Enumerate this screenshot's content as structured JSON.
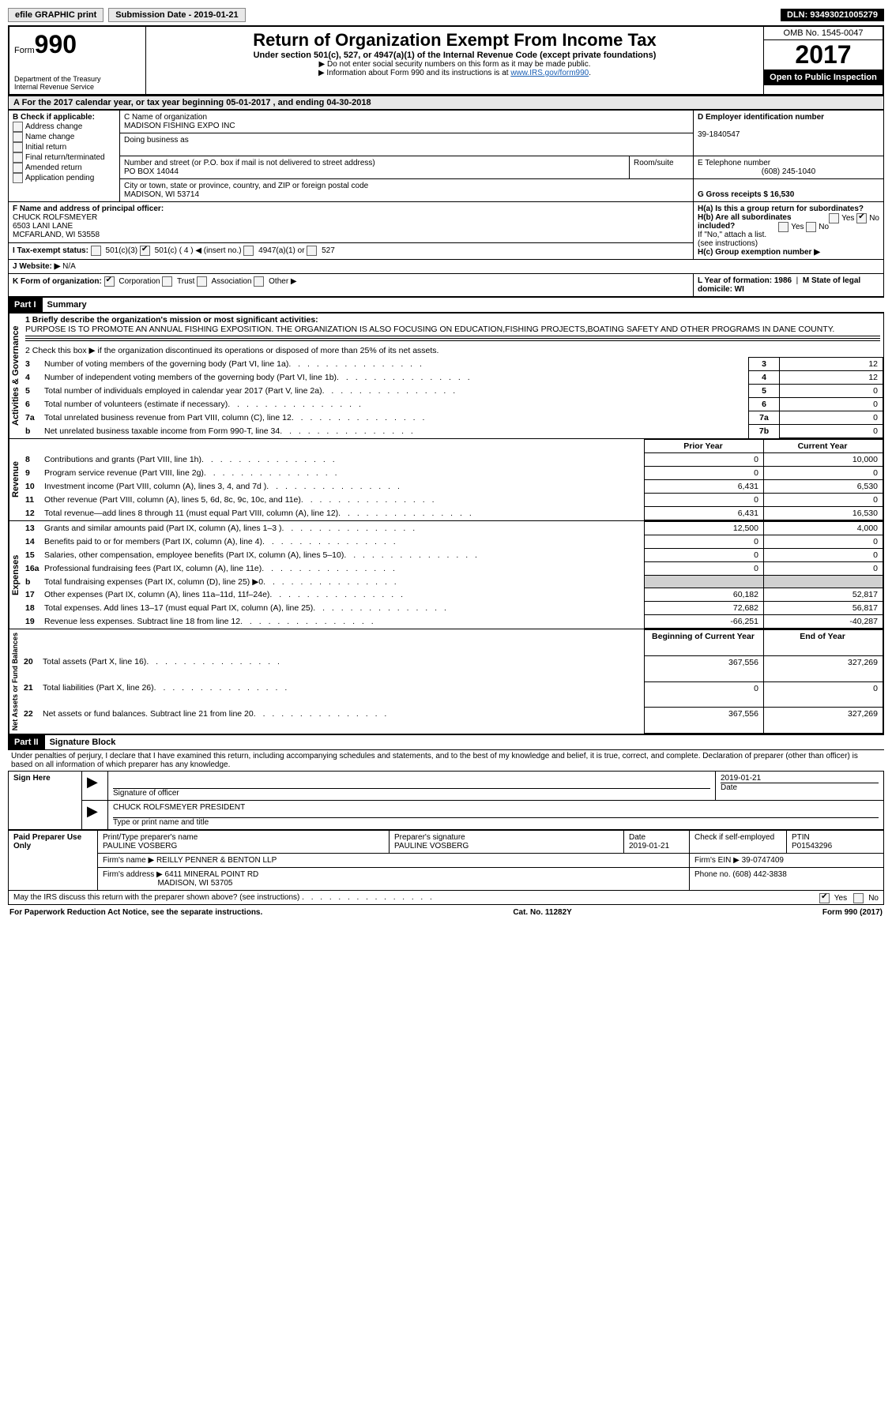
{
  "topbar": {
    "efile_label": "efile GRAPHIC print",
    "submission_label": "Submission Date - 2019-01-21",
    "dln_label": "DLN: 93493021005279"
  },
  "header": {
    "form_prefix": "Form",
    "form_number": "990",
    "dept": "Department of the Treasury",
    "irs": "Internal Revenue Service",
    "title": "Return of Organization Exempt From Income Tax",
    "subtitle": "Under section 501(c), 527, or 4947(a)(1) of the Internal Revenue Code (except private foundations)",
    "note1": "▶ Do not enter social security numbers on this form as it may be made public.",
    "note2_prefix": "▶ Information about Form 990 and its instructions is at ",
    "note2_link": "www.IRS.gov/form990",
    "omb": "OMB No. 1545-0047",
    "year": "2017",
    "open_public": "Open to Public Inspection"
  },
  "section_a": "A  For the 2017 calendar year, or tax year beginning 05-01-2017   , and ending 04-30-2018",
  "block_b": {
    "title": "B Check if applicable:",
    "items": [
      "Address change",
      "Name change",
      "Initial return",
      "Final return/terminated",
      "Amended return",
      "Application pending"
    ]
  },
  "block_c": {
    "name_label": "C Name of organization",
    "name": "MADISON FISHING EXPO INC",
    "dba_label": "Doing business as",
    "street_label": "Number and street (or P.O. box if mail is not delivered to street address)",
    "street": "PO BOX 14044",
    "room_label": "Room/suite",
    "city_label": "City or town, state or province, country, and ZIP or foreign postal code",
    "city": "MADISON, WI  53714"
  },
  "block_d": {
    "ein_label": "D Employer identification number",
    "ein": "39-1840547",
    "phone_label": "E Telephone number",
    "phone": "(608) 245-1040",
    "gross_label": "G Gross receipts $ 16,530"
  },
  "block_f": {
    "label": "F Name and address of principal officer:",
    "name": "CHUCK ROLFSMEYER",
    "addr1": "6503 LANI LANE",
    "addr2": "MCFARLAND, WI  53558"
  },
  "block_h": {
    "a_label": "H(a)  Is this a group return for subordinates?",
    "b_label": "H(b)  Are all subordinates included?",
    "note": "If \"No,\" attach a list. (see instructions)",
    "c_label": "H(c)  Group exemption number ▶",
    "yes": "Yes",
    "no": "No"
  },
  "block_i": {
    "label": "I  Tax-exempt status:",
    "opts": [
      "501(c)(3)",
      "501(c) ( 4 ) ◀ (insert no.)",
      "4947(a)(1) or",
      "527"
    ]
  },
  "block_j": {
    "label": "J  Website: ▶",
    "value": "N/A"
  },
  "block_k": {
    "label": "K Form of organization:",
    "opts": [
      "Corporation",
      "Trust",
      "Association",
      "Other ▶"
    ],
    "year_label": "L Year of formation: 1986",
    "state_label": "M State of legal domicile: WI"
  },
  "part1": {
    "header": "Part I",
    "title": "Summary",
    "vlabel_gov": "Activities & Governance",
    "vlabel_rev": "Revenue",
    "vlabel_exp": "Expenses",
    "vlabel_net": "Net Assets or Fund Balances",
    "line1_label": "1  Briefly describe the organization's mission or most significant activities:",
    "line1_text": "PURPOSE IS TO PROMOTE AN ANNUAL FISHING EXPOSITION. THE ORGANIZATION IS ALSO FOCUSING ON EDUCATION,FISHING PROJECTS,BOATING SAFETY AND OTHER PROGRAMS IN DANE COUNTY.",
    "line2": "2   Check this box ▶        if the organization discontinued its operations or disposed of more than 25% of its net assets.",
    "rows_single": [
      {
        "n": "3",
        "label": "Number of voting members of the governing body (Part VI, line 1a)",
        "box": "3",
        "val": "12"
      },
      {
        "n": "4",
        "label": "Number of independent voting members of the governing body (Part VI, line 1b)",
        "box": "4",
        "val": "12"
      },
      {
        "n": "5",
        "label": "Total number of individuals employed in calendar year 2017 (Part V, line 2a)",
        "box": "5",
        "val": "0"
      },
      {
        "n": "6",
        "label": "Total number of volunteers (estimate if necessary)",
        "box": "6",
        "val": "0"
      },
      {
        "n": "7a",
        "label": "Total unrelated business revenue from Part VIII, column (C), line 12",
        "box": "7a",
        "val": "0"
      },
      {
        "n": "b",
        "label": "Net unrelated business taxable income from Form 990-T, line 34",
        "box": "7b",
        "val": "0"
      }
    ],
    "col_headers": {
      "prior": "Prior Year",
      "current": "Current Year"
    },
    "rows_rev": [
      {
        "n": "8",
        "label": "Contributions and grants (Part VIII, line 1h)",
        "prior": "0",
        "cur": "10,000"
      },
      {
        "n": "9",
        "label": "Program service revenue (Part VIII, line 2g)",
        "prior": "0",
        "cur": "0"
      },
      {
        "n": "10",
        "label": "Investment income (Part VIII, column (A), lines 3, 4, and 7d )",
        "prior": "6,431",
        "cur": "6,530"
      },
      {
        "n": "11",
        "label": "Other revenue (Part VIII, column (A), lines 5, 6d, 8c, 9c, 10c, and 11e)",
        "prior": "0",
        "cur": "0"
      },
      {
        "n": "12",
        "label": "Total revenue—add lines 8 through 11 (must equal Part VIII, column (A), line 12)",
        "prior": "6,431",
        "cur": "16,530"
      }
    ],
    "rows_exp": [
      {
        "n": "13",
        "label": "Grants and similar amounts paid (Part IX, column (A), lines 1–3 )",
        "prior": "12,500",
        "cur": "4,000"
      },
      {
        "n": "14",
        "label": "Benefits paid to or for members (Part IX, column (A), line 4)",
        "prior": "0",
        "cur": "0"
      },
      {
        "n": "15",
        "label": "Salaries, other compensation, employee benefits (Part IX, column (A), lines 5–10)",
        "prior": "0",
        "cur": "0"
      },
      {
        "n": "16a",
        "label": "Professional fundraising fees (Part IX, column (A), line 11e)",
        "prior": "0",
        "cur": "0"
      },
      {
        "n": "b",
        "label": "Total fundraising expenses (Part IX, column (D), line 25) ▶0",
        "prior": "",
        "cur": "",
        "shade": true
      },
      {
        "n": "17",
        "label": "Other expenses (Part IX, column (A), lines 11a–11d, 11f–24e)",
        "prior": "60,182",
        "cur": "52,817"
      },
      {
        "n": "18",
        "label": "Total expenses. Add lines 13–17 (must equal Part IX, column (A), line 25)",
        "prior": "72,682",
        "cur": "56,817"
      },
      {
        "n": "19",
        "label": "Revenue less expenses. Subtract line 18 from line 12",
        "prior": "-66,251",
        "cur": "-40,287"
      }
    ],
    "col_headers2": {
      "begin": "Beginning of Current Year",
      "end": "End of Year"
    },
    "rows_net": [
      {
        "n": "20",
        "label": "Total assets (Part X, line 16)",
        "prior": "367,556",
        "cur": "327,269"
      },
      {
        "n": "21",
        "label": "Total liabilities (Part X, line 26)",
        "prior": "0",
        "cur": "0"
      },
      {
        "n": "22",
        "label": "Net assets or fund balances. Subtract line 21 from line 20",
        "prior": "367,556",
        "cur": "327,269"
      }
    ]
  },
  "part2": {
    "header": "Part II",
    "title": "Signature Block",
    "decl": "Under penalties of perjury, I declare that I have examined this return, including accompanying schedules and statements, and to the best of my knowledge and belief, it is true, correct, and complete. Declaration of preparer (other than officer) is based on all information of which preparer has any knowledge.",
    "sign_here": "Sign Here",
    "sig_officer_label": "Signature of officer",
    "date_label": "Date",
    "date_val": "2019-01-21",
    "officer_name": "CHUCK ROLFSMEYER PRESIDENT",
    "officer_name_label": "Type or print name and title",
    "paid": "Paid Preparer Use Only",
    "prep_name_label": "Print/Type preparer's name",
    "prep_name": "PAULINE VOSBERG",
    "prep_sig_label": "Preparer's signature",
    "prep_sig": "PAULINE VOSBERG",
    "prep_date_label": "Date",
    "prep_date": "2019-01-21",
    "self_emp": "Check        if self-employed",
    "ptin_label": "PTIN",
    "ptin": "P01543296",
    "firm_name_label": "Firm's name      ▶",
    "firm_name": "REILLY PENNER & BENTON LLP",
    "firm_ein_label": "Firm's EIN ▶",
    "firm_ein": "39-0747409",
    "firm_addr_label": "Firm's address ▶",
    "firm_addr": "6411 MINERAL POINT RD",
    "firm_city": "MADISON, WI  53705",
    "firm_phone_label": "Phone no.",
    "firm_phone": "(608) 442-3838",
    "discuss": "May the IRS discuss this return with the preparer shown above? (see instructions)"
  },
  "footer": {
    "left": "For Paperwork Reduction Act Notice, see the separate instructions.",
    "center": "Cat. No. 11282Y",
    "right": "Form 990 (2017)"
  }
}
